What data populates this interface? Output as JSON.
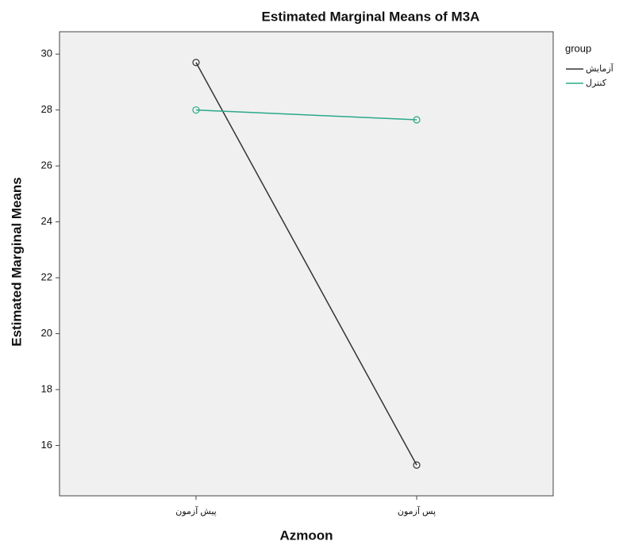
{
  "chart_data": {
    "type": "line",
    "title": "Estimated Marginal Means of M3A",
    "x_label": "Azmoon",
    "y_label": "Estimated Marginal Means",
    "categories": [
      "پیش آزمون",
      "پس آزمون"
    ],
    "series": [
      {
        "name": "آزمایش",
        "color": "#333333",
        "values": [
          29.7,
          15.3
        ]
      },
      {
        "name": "کنترل",
        "color": "#2aa88a",
        "values": [
          28.0,
          27.65
        ]
      }
    ],
    "ylim": [
      14.2,
      30.8
    ],
    "yticks": [
      16,
      18,
      20,
      22,
      24,
      26,
      28,
      30
    ],
    "legend_title": "group",
    "legend": "right",
    "markers": "open-circle"
  }
}
